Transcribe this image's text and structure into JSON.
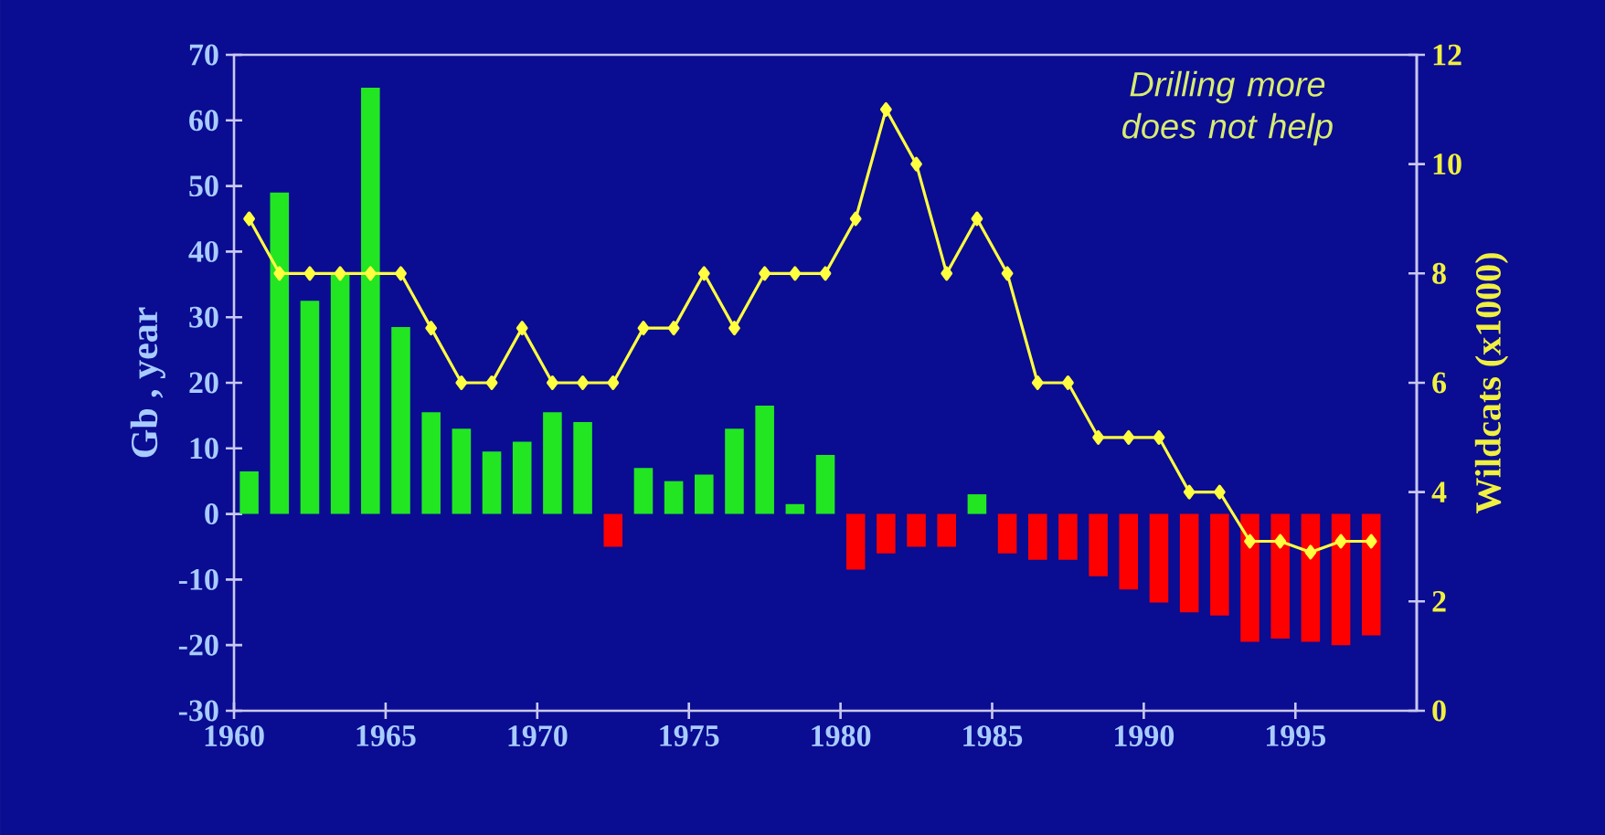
{
  "chart_data": {
    "type": "bar",
    "ylabel": "Gb , year",
    "y2label": "Wildcats (x1000)",
    "annotations": [
      "Drilling more does not help"
    ],
    "x": [
      1960.5,
      1961.5,
      1962.5,
      1963.5,
      1964.5,
      1965.5,
      1966.5,
      1967.5,
      1968.5,
      1969.5,
      1970.5,
      1971.5,
      1972.5,
      1973.5,
      1974.5,
      1975.5,
      1976.5,
      1977.5,
      1978.5,
      1979.5,
      1980.5,
      1981.5,
      1982.5,
      1983.5,
      1984.5,
      1985.5,
      1986.5,
      1987.5,
      1988.5,
      1989.5,
      1990.5,
      1991.5,
      1992.5,
      1993.5,
      1994.5,
      1995.5,
      1996.5,
      1997.5
    ],
    "series": [
      {
        "values": [
          6.5,
          49,
          32.5,
          36.5,
          65,
          28.5,
          15.5,
          13,
          9.5,
          11,
          15.5,
          14,
          -5,
          7,
          5,
          6,
          13,
          16.5,
          1.5,
          9,
          -8.5,
          -6,
          -5,
          -5,
          3,
          -6,
          -7,
          -7,
          -9.5,
          -11.5,
          -13.5,
          -15,
          -15.5,
          -19.5,
          -19,
          -19.5,
          -20,
          -18.5
        ],
        "colors": [
          "#22e622",
          "#22e622",
          "#22e622",
          "#22e622",
          "#22e622",
          "#22e622",
          "#22e622",
          "#22e622",
          "#22e622",
          "#22e622",
          "#22e622",
          "#22e622",
          "#ff0000",
          "#22e622",
          "#22e622",
          "#22e622",
          "#22e622",
          "#22e622",
          "#22e622",
          "#22e622",
          "#ff0000",
          "#ff0000",
          "#ff0000",
          "#ff0000",
          "#22e622",
          "#ff0000",
          "#ff0000",
          "#ff0000",
          "#ff0000",
          "#ff0000",
          "#ff0000",
          "#ff0000",
          "#ff0000",
          "#ff0000",
          "#ff0000",
          "#ff0000",
          "#ff0000",
          "#ff0000"
        ]
      },
      {
        "type": "line",
        "axis": "y2",
        "color": "#ffff40",
        "marker": "diamond",
        "values": [
          9,
          8,
          8,
          8,
          8,
          8,
          7,
          6,
          6,
          7,
          6,
          6,
          6,
          7,
          7,
          8,
          7,
          8,
          8,
          8,
          9,
          11,
          10,
          8,
          9,
          8,
          6,
          6,
          5,
          5,
          5,
          4,
          4,
          3.1,
          3.1,
          2.9,
          3.1,
          3.1
        ]
      }
    ],
    "xlim": [
      1960,
      1999
    ],
    "xticks": [
      1960,
      1965,
      1970,
      1975,
      1980,
      1985,
      1990,
      1995
    ],
    "ylim": [
      -30,
      70
    ],
    "yticks": [
      -30,
      -20,
      -10,
      0,
      10,
      20,
      30,
      40,
      50,
      60,
      70
    ],
    "y2lim": [
      0,
      12
    ],
    "y2ticks": [
      0,
      2,
      4,
      6,
      8,
      10,
      12
    ]
  }
}
